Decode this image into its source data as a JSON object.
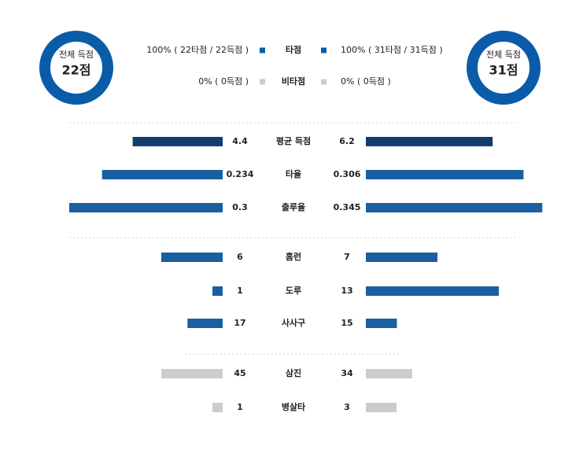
{
  "summary": {
    "left": {
      "label": "전체 득점",
      "value": "22점"
    },
    "right": {
      "label": "전체 득점",
      "value": "31점"
    },
    "color": "#0a5ca8"
  },
  "legend": [
    {
      "label": "타점",
      "left": "100% ( 22타점 / 22득점 )",
      "right": "100% ( 31타점 / 31득점 )",
      "color": "#0a5ca8"
    },
    {
      "label": "비타점",
      "left": "0% ( 0득점 )",
      "right": "0% ( 0득점 )",
      "color": "#cccccc"
    }
  ],
  "stats": [
    {
      "label": "평균 득점",
      "left": 4.4,
      "right": 6.2,
      "color": "#133d6e"
    },
    {
      "label": "타율",
      "left": 0.234,
      "right": 0.306,
      "color": "#1a5fa0"
    },
    {
      "label": "출루율",
      "left": 0.3,
      "right": 0.345,
      "color": "#1a5fa0"
    },
    {
      "label": "홈런",
      "left": 6,
      "right": 7,
      "color": "#1a5fa0"
    },
    {
      "label": "도루",
      "left": 1,
      "right": 13,
      "color": "#1a5fa0"
    },
    {
      "label": "사사구",
      "left": 17,
      "right": 15,
      "color": "#1a5fa0"
    },
    {
      "label": "삼진",
      "left": 45,
      "right": 34,
      "color": "#cccccc"
    },
    {
      "label": "병살타",
      "left": 1,
      "right": 3,
      "color": "#cccccc"
    }
  ]
}
